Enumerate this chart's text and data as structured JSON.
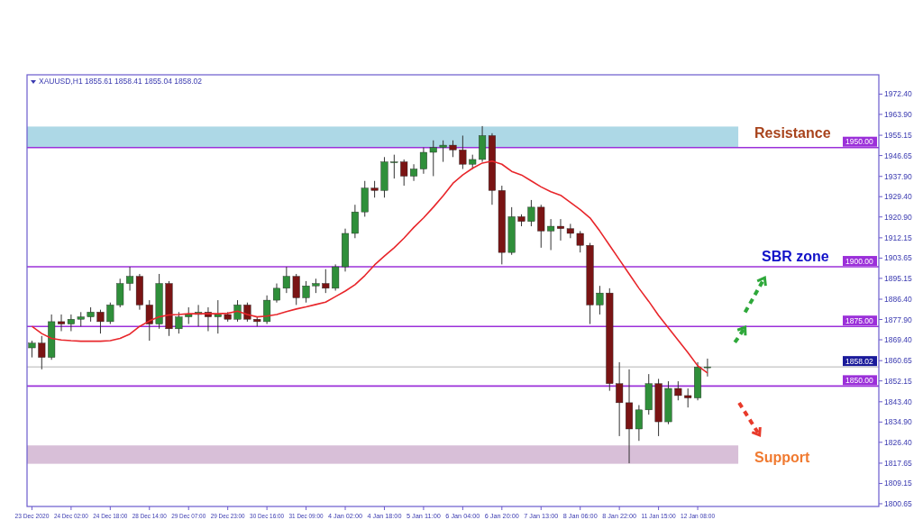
{
  "chart_data": {
    "type": "candlestick",
    "title": "XAUUSD,H1  1855.61 1858.41 1855.04 1858.02",
    "categories": [
      "23 Dec 2020",
      null,
      null,
      null,
      "24 Dec 02:00",
      null,
      null,
      null,
      "24 Dec 18:00",
      null,
      null,
      null,
      "28 Dec 14:00",
      null,
      null,
      null,
      "29 Dec 07:00",
      null,
      null,
      null,
      "29 Dec 23:00",
      null,
      null,
      null,
      "30 Dec 16:00",
      null,
      null,
      null,
      "31 Dec 09:00",
      null,
      null,
      null,
      "4 Jan 02:00",
      null,
      null,
      null,
      "4 Jan 18:00",
      null,
      null,
      null,
      "5 Jan 11:00",
      null,
      null,
      null,
      "6 Jan 04:00",
      null,
      null,
      null,
      "6 Jan 20:00",
      null,
      null,
      null,
      "7 Jan 13:00",
      null,
      null,
      null,
      "8 Jan 06:00",
      null,
      null,
      null,
      "8 Jan 22:00",
      null,
      null,
      null,
      "11 Jan 15:00",
      null,
      null,
      null,
      "12 Jan 08:00",
      null,
      null,
      null,
      null,
      null,
      null,
      null,
      null,
      null,
      null,
      null,
      null,
      null,
      null,
      null,
      null,
      null,
      null
    ],
    "series": [
      {
        "ohlc": [
          [
            1866,
            1869,
            1862,
            1868
          ],
          [
            1868,
            1871,
            1857,
            1862
          ],
          [
            1862,
            1880,
            1861,
            1877
          ],
          [
            1877,
            1880,
            1873,
            1876
          ],
          [
            1876,
            1880,
            1873,
            1878
          ],
          [
            1878,
            1881,
            1875,
            1879
          ],
          [
            1879,
            1883,
            1877,
            1881
          ],
          [
            1881,
            1882,
            1872,
            1877
          ],
          [
            1877,
            1885,
            1876,
            1884
          ],
          [
            1884,
            1895,
            1883,
            1893
          ],
          [
            1893,
            1900,
            1890,
            1896
          ],
          [
            1896,
            1897,
            1882,
            1884
          ],
          [
            1884,
            1886,
            1869,
            1876
          ],
          [
            1876,
            1897,
            1874,
            1893
          ],
          [
            1893,
            1894,
            1871,
            1874
          ],
          [
            1874,
            1881,
            1872,
            1879
          ],
          [
            1879,
            1883,
            1876,
            1880
          ],
          [
            1880,
            1884,
            1875,
            1881
          ],
          [
            1881,
            1883,
            1873,
            1879
          ],
          [
            1879,
            1886,
            1872,
            1880
          ],
          [
            1880,
            1881,
            1877,
            1878
          ],
          [
            1878,
            1886,
            1877,
            1884
          ],
          [
            1884,
            1885,
            1877,
            1878
          ],
          [
            1878,
            1879,
            1875,
            1877
          ],
          [
            1877,
            1888,
            1876,
            1886
          ],
          [
            1886,
            1893,
            1885,
            1891
          ],
          [
            1891,
            1900,
            1889,
            1896
          ],
          [
            1896,
            1897,
            1884,
            1887
          ],
          [
            1887,
            1894,
            1885,
            1892
          ],
          [
            1892,
            1895,
            1889,
            1893
          ],
          [
            1893,
            1899,
            1889,
            1891
          ],
          [
            1891,
            1901,
            1890,
            1900
          ],
          [
            1900,
            1916,
            1898,
            1914
          ],
          [
            1914,
            1926,
            1912,
            1923
          ],
          [
            1923,
            1936,
            1921,
            1933
          ],
          [
            1933,
            1936,
            1929,
            1932
          ],
          [
            1932,
            1946,
            1929,
            1944
          ],
          [
            1944,
            1947,
            1937,
            1944
          ],
          [
            1944,
            1945,
            1934,
            1938
          ],
          [
            1938,
            1943,
            1936,
            1941
          ],
          [
            1941,
            1950,
            1939,
            1948
          ],
          [
            1948,
            1953,
            1938,
            1950
          ],
          [
            1950,
            1953,
            1944,
            1951
          ],
          [
            1951,
            1953,
            1946,
            1949
          ],
          [
            1949,
            1955,
            1941,
            1943
          ],
          [
            1943,
            1947,
            1941,
            1945
          ],
          [
            1945,
            1959,
            1944,
            1955
          ],
          [
            1955,
            1956,
            1926,
            1932
          ],
          [
            1932,
            1934,
            1901,
            1906
          ],
          [
            1906,
            1925,
            1905,
            1921
          ],
          [
            1921,
            1922,
            1917,
            1919
          ],
          [
            1919,
            1928,
            1917,
            1925
          ],
          [
            1925,
            1926,
            1908,
            1915
          ],
          [
            1915,
            1920,
            1907,
            1917
          ],
          [
            1917,
            1920,
            1911,
            1916
          ],
          [
            1916,
            1918,
            1912,
            1914
          ],
          [
            1914,
            1915,
            1906,
            1909
          ],
          [
            1909,
            1910,
            1876,
            1884
          ],
          [
            1884,
            1892,
            1880,
            1889
          ],
          [
            1889,
            1891,
            1848,
            1851
          ],
          [
            1851,
            1860,
            1829,
            1843
          ],
          [
            1843,
            1857,
            1817.6,
            1832
          ],
          [
            1832,
            1842,
            1827,
            1840
          ],
          [
            1840,
            1855,
            1838,
            1851
          ],
          [
            1851,
            1853,
            1829,
            1835
          ],
          [
            1835,
            1852,
            1834,
            1849
          ],
          [
            1849,
            1852,
            1844,
            1846
          ],
          [
            1846,
            1849,
            1841,
            1845
          ],
          [
            1845,
            1860,
            1844,
            1858
          ],
          [
            1858,
            1861.5,
            1854,
            1858.02
          ],
          null,
          null,
          null,
          null,
          null,
          null,
          null,
          null,
          null,
          null,
          null,
          null,
          null,
          null,
          null,
          null,
          null
        ]
      },
      {
        "type": "line",
        "color": "#e8262b",
        "values": [
          1875,
          1872,
          1870,
          1869.3,
          1869,
          1868.8,
          1868.8,
          1868.8,
          1869,
          1870,
          1871.8,
          1875,
          1877.3,
          1879,
          1879.8,
          1880,
          1880.3,
          1880.3,
          1880.3,
          1880.3,
          1880.5,
          1881.4,
          1880,
          1879,
          1879.3,
          1880,
          1881.2,
          1882.3,
          1883.2,
          1884.2,
          1885.2,
          1887.5,
          1889.8,
          1892.5,
          1896.3,
          1900.8,
          1904.5,
          1908,
          1912,
          1916.5,
          1920.5,
          1925,
          1929.8,
          1935,
          1938.5,
          1941.3,
          1943.5,
          1944.3,
          1943,
          1940,
          1938.5,
          1936,
          1933.5,
          1931.5,
          1930,
          1927,
          1924,
          1920.5,
          1915,
          1909,
          1903,
          1897,
          1891,
          1885.5,
          1879.6,
          1874.4,
          1869.2,
          1864,
          1858.5,
          1855.5,
          null,
          null,
          null,
          null,
          null,
          null,
          null,
          null,
          null,
          null,
          null,
          null,
          null,
          null,
          null,
          null,
          null
        ]
      }
    ],
    "ylim": [
      1799.5,
      1980.5
    ],
    "yticks": [
      1800.65,
      1809.15,
      1817.65,
      {
        "value": 1826.4,
        "label": "1826.40"
      },
      {
        "value": 1834.9,
        "label": "1834.90"
      },
      {
        "value": 1843.4,
        "label": "1843.40"
      },
      1852.15,
      1860.65,
      {
        "value": 1869.4,
        "label": "1869.40"
      },
      {
        "value": 1877.9,
        "label": "1877.90"
      },
      {
        "value": 1886.4,
        "label": "1886.40"
      },
      1895.15,
      1903.65,
      1912.15,
      {
        "value": 1920.9,
        "label": "1920.90"
      },
      {
        "value": 1929.4,
        "label": "1929.40"
      },
      {
        "value": 1937.9,
        "label": "1937.90"
      },
      1946.65,
      1955.15,
      {
        "value": 1963.9,
        "label": "1963.90"
      },
      {
        "value": 1972.4,
        "label": "1972.40"
      }
    ],
    "ref_lines": [
      {
        "axis": "y",
        "value": 1950,
        "label": "1950.00",
        "color": "#9b30d9"
      },
      {
        "axis": "y",
        "value": 1900,
        "label": "1900.00",
        "color": "#9b30d9"
      },
      {
        "axis": "y",
        "value": 1875,
        "label": "1875.00",
        "color": "#9b30d9"
      },
      {
        "axis": "y",
        "value": 1858.02,
        "label": "1858.02",
        "color": "#b4b4b4"
      },
      {
        "axis": "y",
        "value": 1850,
        "label": "1850.00",
        "color": "#9b30d9"
      }
    ],
    "bands": [
      {
        "axis": "y",
        "from": 1950,
        "to": 1958.8,
        "label": "Resistance",
        "color": "#add8e6"
      },
      {
        "axis": "y",
        "from": 1817.4,
        "to": 1825.1,
        "label": "Support",
        "color": "#d8bfd8"
      }
    ],
    "annotations": [
      {
        "text": "SBR zone",
        "y": 1900
      }
    ],
    "grid": false
  }
}
